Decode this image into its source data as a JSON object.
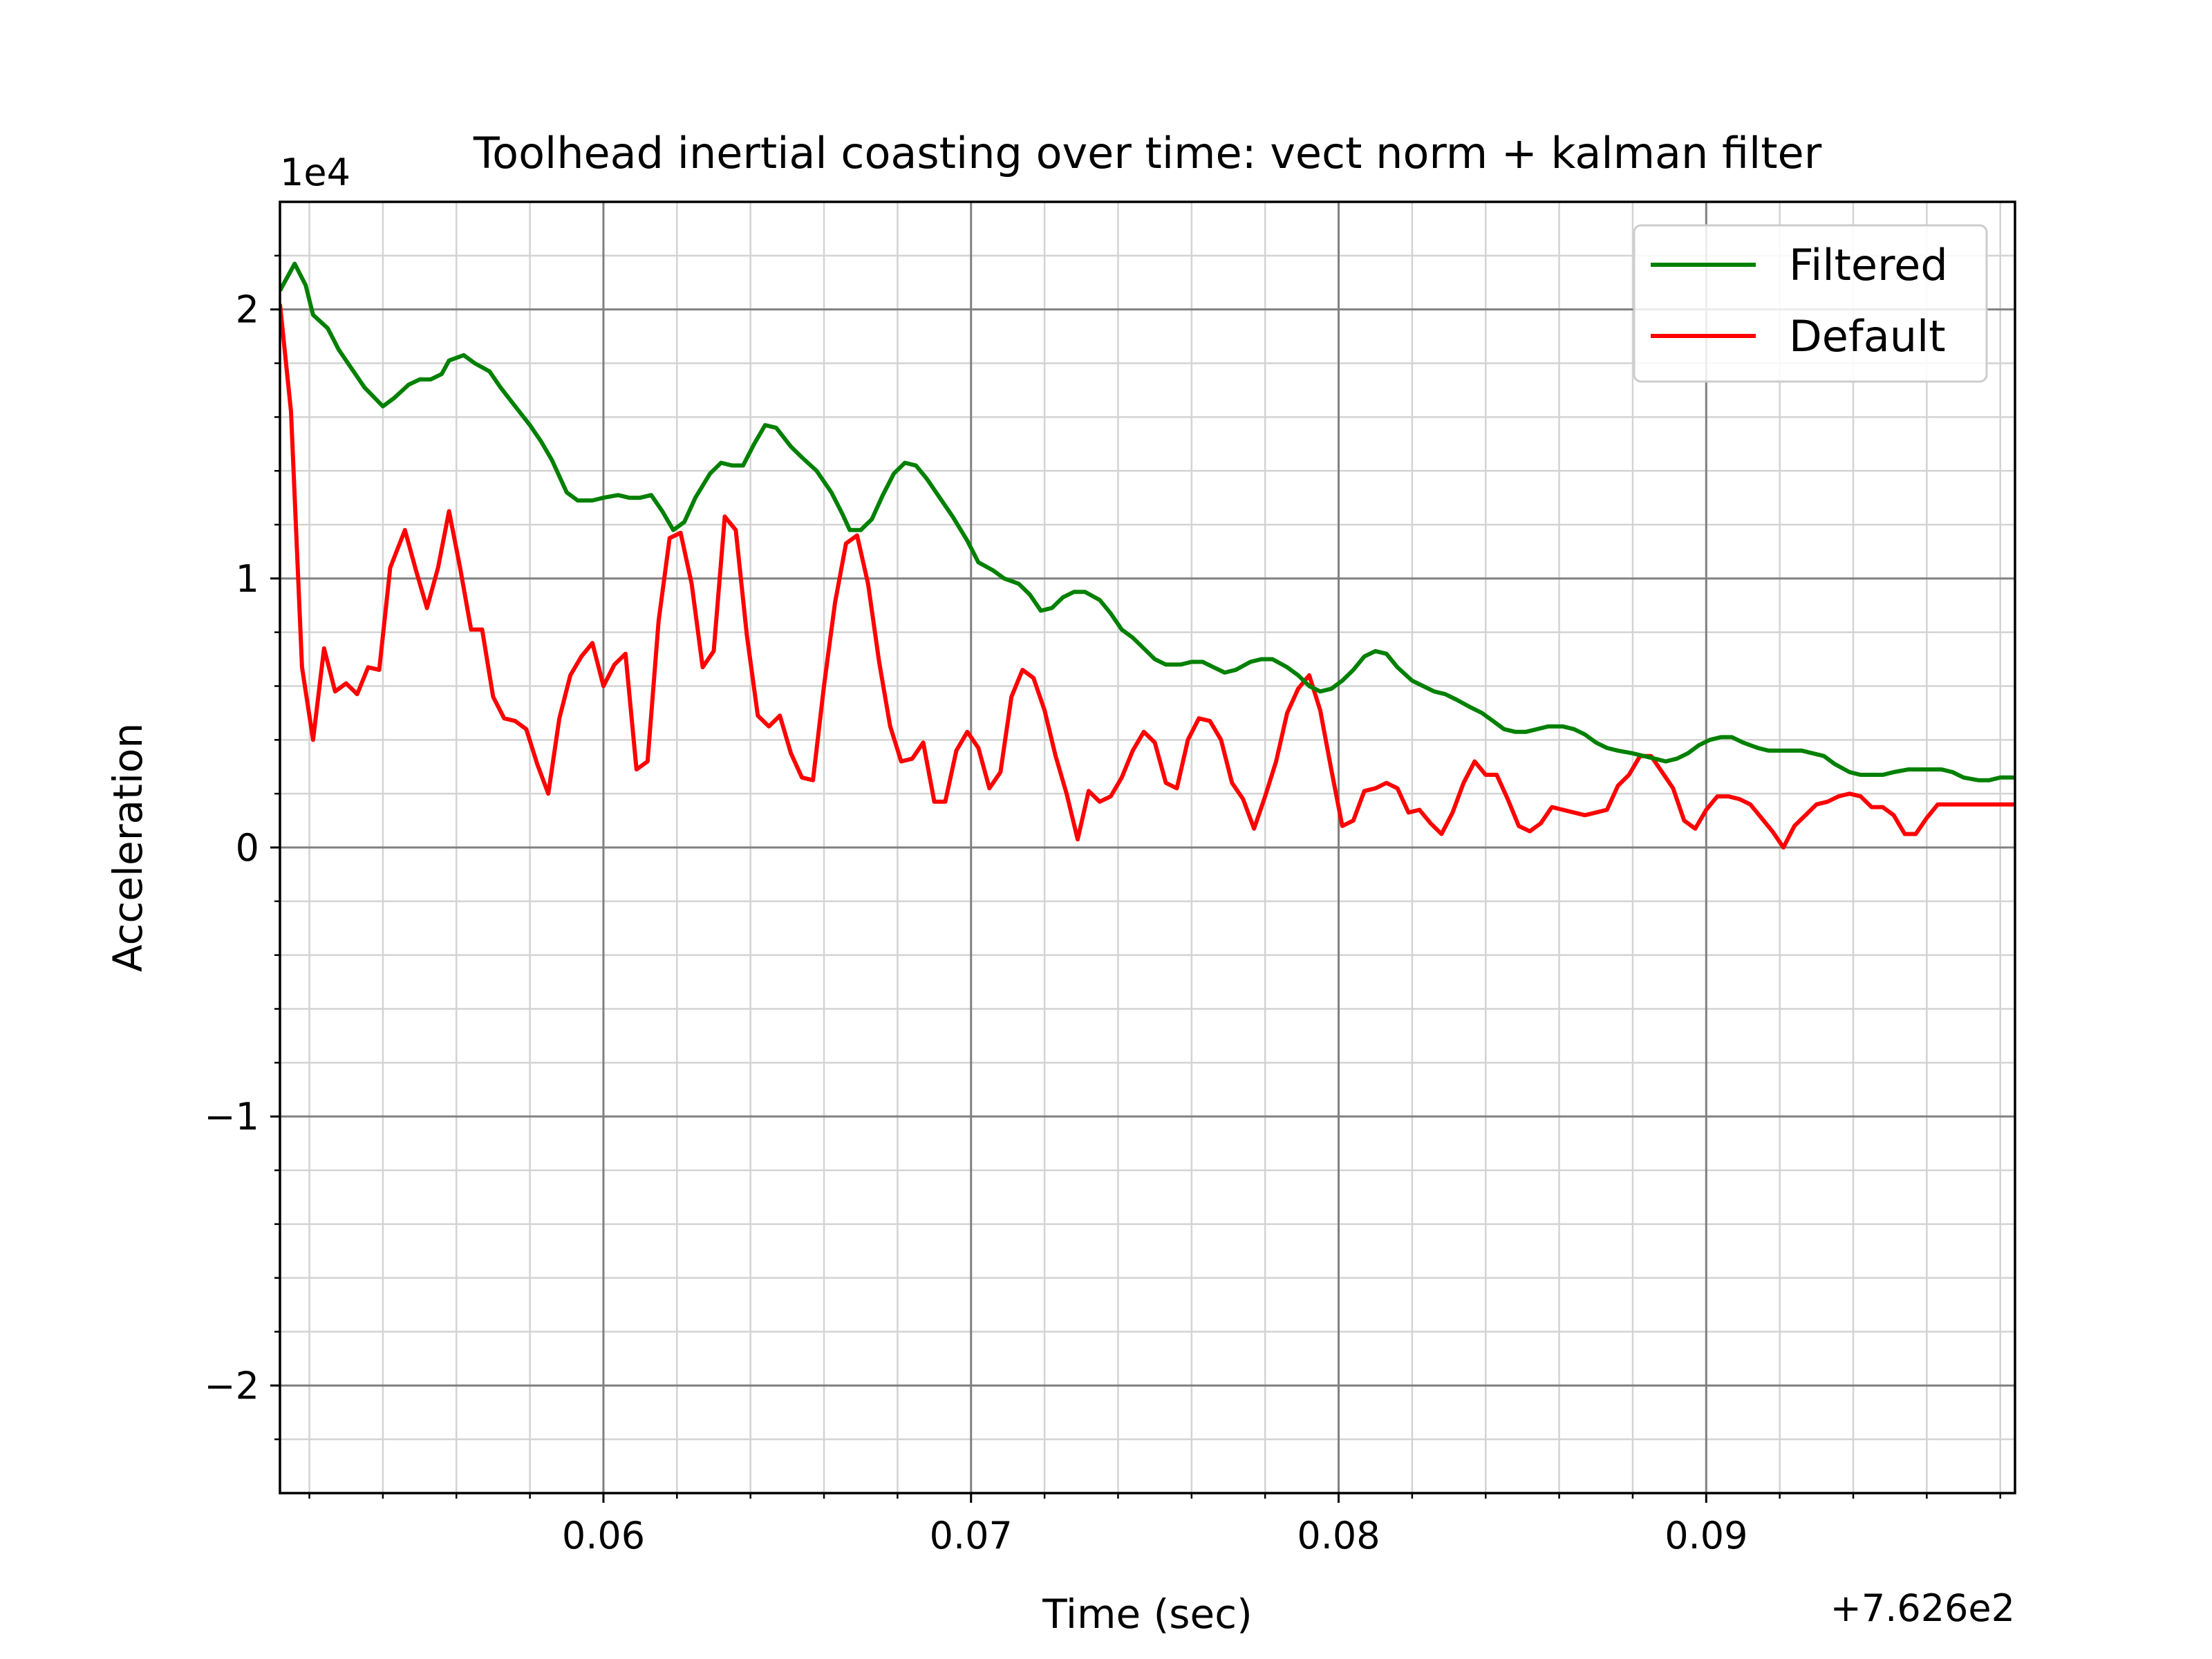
{
  "chart_data": {
    "type": "line",
    "title": "Toolhead inertial coasting over time: vect norm + kalman filter",
    "xlabel": "Time (sec)",
    "ylabel": "Acceleration",
    "x_offset_label": "+7.626e2",
    "y_scale_label": "1e4",
    "xlim": [
      0.0512,
      0.0984
    ],
    "ylim": [
      -2.4,
      2.4
    ],
    "x_ticks": [
      {
        "value": 0.06,
        "label": "0.06"
      },
      {
        "value": 0.07,
        "label": "0.07"
      },
      {
        "value": 0.08,
        "label": "0.08"
      },
      {
        "value": 0.09,
        "label": "0.09"
      }
    ],
    "y_ticks": [
      {
        "value": 2,
        "label": "2"
      },
      {
        "value": 1,
        "label": "1"
      },
      {
        "value": 0,
        "label": "0"
      },
      {
        "value": -1,
        "label": "−1"
      },
      {
        "value": -2,
        "label": "−2"
      }
    ],
    "grid": true,
    "legend_position": "top-right",
    "series": [
      {
        "name": "Filtered",
        "color": "#008000",
        "points": [
          [
            0.0512,
            2.07
          ],
          [
            0.0516,
            2.17
          ],
          [
            0.0519,
            2.09
          ],
          [
            0.0521,
            1.98
          ],
          [
            0.0525,
            1.93
          ],
          [
            0.0528,
            1.85
          ],
          [
            0.0532,
            1.77
          ],
          [
            0.0535,
            1.71
          ],
          [
            0.054,
            1.64
          ],
          [
            0.0543,
            1.67
          ],
          [
            0.0547,
            1.72
          ],
          [
            0.055,
            1.74
          ],
          [
            0.0553,
            1.74
          ],
          [
            0.0556,
            1.76
          ],
          [
            0.0558,
            1.81
          ],
          [
            0.0562,
            1.83
          ],
          [
            0.0565,
            1.8
          ],
          [
            0.0569,
            1.77
          ],
          [
            0.0572,
            1.71
          ],
          [
            0.0576,
            1.64
          ],
          [
            0.058,
            1.57
          ],
          [
            0.0583,
            1.51
          ],
          [
            0.0586,
            1.44
          ],
          [
            0.059,
            1.32
          ],
          [
            0.0593,
            1.29
          ],
          [
            0.0597,
            1.29
          ],
          [
            0.06,
            1.3
          ],
          [
            0.0604,
            1.31
          ],
          [
            0.0607,
            1.3
          ],
          [
            0.061,
            1.3
          ],
          [
            0.0613,
            1.31
          ],
          [
            0.0616,
            1.25
          ],
          [
            0.0619,
            1.18
          ],
          [
            0.0622,
            1.21
          ],
          [
            0.0625,
            1.3
          ],
          [
            0.0629,
            1.39
          ],
          [
            0.0632,
            1.43
          ],
          [
            0.0635,
            1.42
          ],
          [
            0.0638,
            1.42
          ],
          [
            0.0641,
            1.5
          ],
          [
            0.0644,
            1.57
          ],
          [
            0.0647,
            1.56
          ],
          [
            0.0651,
            1.49
          ],
          [
            0.0654,
            1.45
          ],
          [
            0.0658,
            1.4
          ],
          [
            0.0662,
            1.32
          ],
          [
            0.0665,
            1.24
          ],
          [
            0.0667,
            1.18
          ],
          [
            0.067,
            1.18
          ],
          [
            0.0673,
            1.22
          ],
          [
            0.0676,
            1.31
          ],
          [
            0.0679,
            1.39
          ],
          [
            0.0682,
            1.43
          ],
          [
            0.0685,
            1.42
          ],
          [
            0.0688,
            1.37
          ],
          [
            0.0692,
            1.29
          ],
          [
            0.0695,
            1.23
          ],
          [
            0.0699,
            1.14
          ],
          [
            0.0702,
            1.06
          ],
          [
            0.0706,
            1.03
          ],
          [
            0.0709,
            1.0
          ],
          [
            0.0713,
            0.98
          ],
          [
            0.0716,
            0.94
          ],
          [
            0.0719,
            0.88
          ],
          [
            0.0722,
            0.89
          ],
          [
            0.0725,
            0.93
          ],
          [
            0.0728,
            0.95
          ],
          [
            0.0731,
            0.95
          ],
          [
            0.0735,
            0.92
          ],
          [
            0.0738,
            0.87
          ],
          [
            0.0741,
            0.81
          ],
          [
            0.0744,
            0.78
          ],
          [
            0.0747,
            0.74
          ],
          [
            0.075,
            0.7
          ],
          [
            0.0753,
            0.68
          ],
          [
            0.0757,
            0.68
          ],
          [
            0.076,
            0.69
          ],
          [
            0.0763,
            0.69
          ],
          [
            0.0766,
            0.67
          ],
          [
            0.0769,
            0.65
          ],
          [
            0.0772,
            0.66
          ],
          [
            0.0776,
            0.69
          ],
          [
            0.0779,
            0.7
          ],
          [
            0.0782,
            0.7
          ],
          [
            0.0786,
            0.67
          ],
          [
            0.0789,
            0.64
          ],
          [
            0.0792,
            0.6
          ],
          [
            0.0795,
            0.58
          ],
          [
            0.0798,
            0.59
          ],
          [
            0.0801,
            0.62
          ],
          [
            0.0804,
            0.66
          ],
          [
            0.0807,
            0.71
          ],
          [
            0.081,
            0.73
          ],
          [
            0.0813,
            0.72
          ],
          [
            0.0816,
            0.67
          ],
          [
            0.082,
            0.62
          ],
          [
            0.0823,
            0.6
          ],
          [
            0.0826,
            0.58
          ],
          [
            0.0829,
            0.57
          ],
          [
            0.0832,
            0.55
          ],
          [
            0.0836,
            0.52
          ],
          [
            0.0839,
            0.5
          ],
          [
            0.0842,
            0.47
          ],
          [
            0.0845,
            0.44
          ],
          [
            0.0848,
            0.43
          ],
          [
            0.0851,
            0.43
          ],
          [
            0.0854,
            0.44
          ],
          [
            0.0857,
            0.45
          ],
          [
            0.0861,
            0.45
          ],
          [
            0.0864,
            0.44
          ],
          [
            0.0867,
            0.42
          ],
          [
            0.087,
            0.39
          ],
          [
            0.0873,
            0.37
          ],
          [
            0.0876,
            0.36
          ],
          [
            0.088,
            0.35
          ],
          [
            0.0883,
            0.34
          ],
          [
            0.0886,
            0.33
          ],
          [
            0.0889,
            0.32
          ],
          [
            0.0892,
            0.33
          ],
          [
            0.0895,
            0.35
          ],
          [
            0.0898,
            0.38
          ],
          [
            0.0901,
            0.4
          ],
          [
            0.0904,
            0.41
          ],
          [
            0.0907,
            0.41
          ],
          [
            0.091,
            0.39
          ],
          [
            0.0914,
            0.37
          ],
          [
            0.0917,
            0.36
          ],
          [
            0.092,
            0.36
          ],
          [
            0.0923,
            0.36
          ],
          [
            0.0926,
            0.36
          ],
          [
            0.0929,
            0.35
          ],
          [
            0.0932,
            0.34
          ],
          [
            0.0935,
            0.31
          ],
          [
            0.0939,
            0.28
          ],
          [
            0.0942,
            0.27
          ],
          [
            0.0945,
            0.27
          ],
          [
            0.0948,
            0.27
          ],
          [
            0.0951,
            0.28
          ],
          [
            0.0955,
            0.29
          ],
          [
            0.0958,
            0.29
          ],
          [
            0.0961,
            0.29
          ],
          [
            0.0964,
            0.29
          ],
          [
            0.0967,
            0.28
          ],
          [
            0.097,
            0.26
          ],
          [
            0.0974,
            0.25
          ],
          [
            0.0977,
            0.25
          ],
          [
            0.098,
            0.26
          ],
          [
            0.0984,
            0.26
          ]
        ]
      },
      {
        "name": "Default",
        "color": "#ff0000",
        "points": [
          [
            0.0512,
            2.02
          ],
          [
            0.0515,
            1.62
          ],
          [
            0.0518,
            0.67
          ],
          [
            0.0521,
            0.4
          ],
          [
            0.0524,
            0.74
          ],
          [
            0.0527,
            0.58
          ],
          [
            0.053,
            0.61
          ],
          [
            0.0533,
            0.57
          ],
          [
            0.0536,
            0.67
          ],
          [
            0.0539,
            0.66
          ],
          [
            0.0542,
            1.04
          ],
          [
            0.0546,
            1.18
          ],
          [
            0.0549,
            1.03
          ],
          [
            0.0552,
            0.89
          ],
          [
            0.0555,
            1.04
          ],
          [
            0.0558,
            1.25
          ],
          [
            0.0561,
            1.04
          ],
          [
            0.0564,
            0.81
          ],
          [
            0.0567,
            0.81
          ],
          [
            0.057,
            0.56
          ],
          [
            0.0573,
            0.48
          ],
          [
            0.0576,
            0.47
          ],
          [
            0.0579,
            0.44
          ],
          [
            0.0582,
            0.31
          ],
          [
            0.0585,
            0.2
          ],
          [
            0.0588,
            0.48
          ],
          [
            0.0591,
            0.64
          ],
          [
            0.0594,
            0.71
          ],
          [
            0.0597,
            0.76
          ],
          [
            0.06,
            0.6
          ],
          [
            0.0603,
            0.68
          ],
          [
            0.0606,
            0.72
          ],
          [
            0.0609,
            0.29
          ],
          [
            0.0612,
            0.32
          ],
          [
            0.0615,
            0.84
          ],
          [
            0.0618,
            1.15
          ],
          [
            0.0621,
            1.17
          ],
          [
            0.0624,
            0.98
          ],
          [
            0.0627,
            0.67
          ],
          [
            0.063,
            0.73
          ],
          [
            0.0633,
            1.23
          ],
          [
            0.0636,
            1.18
          ],
          [
            0.0639,
            0.79
          ],
          [
            0.0642,
            0.49
          ],
          [
            0.0645,
            0.45
          ],
          [
            0.0648,
            0.49
          ],
          [
            0.0651,
            0.35
          ],
          [
            0.0654,
            0.26
          ],
          [
            0.0657,
            0.25
          ],
          [
            0.066,
            0.6
          ],
          [
            0.0663,
            0.91
          ],
          [
            0.0666,
            1.13
          ],
          [
            0.0669,
            1.16
          ],
          [
            0.0672,
            0.98
          ],
          [
            0.0675,
            0.69
          ],
          [
            0.0678,
            0.45
          ],
          [
            0.0681,
            0.32
          ],
          [
            0.0684,
            0.33
          ],
          [
            0.0687,
            0.39
          ],
          [
            0.069,
            0.17
          ],
          [
            0.0693,
            0.17
          ],
          [
            0.0696,
            0.36
          ],
          [
            0.0699,
            0.43
          ],
          [
            0.0702,
            0.37
          ],
          [
            0.0705,
            0.22
          ],
          [
            0.0708,
            0.28
          ],
          [
            0.0711,
            0.56
          ],
          [
            0.0714,
            0.66
          ],
          [
            0.0717,
            0.63
          ],
          [
            0.072,
            0.51
          ],
          [
            0.0723,
            0.34
          ],
          [
            0.0726,
            0.2
          ],
          [
            0.0729,
            0.03
          ],
          [
            0.0732,
            0.21
          ],
          [
            0.0735,
            0.17
          ],
          [
            0.0738,
            0.19
          ],
          [
            0.0741,
            0.26
          ],
          [
            0.0744,
            0.36
          ],
          [
            0.0747,
            0.43
          ],
          [
            0.075,
            0.39
          ],
          [
            0.0753,
            0.24
          ],
          [
            0.0756,
            0.22
          ],
          [
            0.0759,
            0.4
          ],
          [
            0.0762,
            0.48
          ],
          [
            0.0765,
            0.47
          ],
          [
            0.0768,
            0.4
          ],
          [
            0.0771,
            0.24
          ],
          [
            0.0774,
            0.18
          ],
          [
            0.0777,
            0.07
          ],
          [
            0.078,
            0.19
          ],
          [
            0.0783,
            0.32
          ],
          [
            0.0786,
            0.5
          ],
          [
            0.0789,
            0.59
          ],
          [
            0.0792,
            0.64
          ],
          [
            0.0795,
            0.51
          ],
          [
            0.0798,
            0.29
          ],
          [
            0.0801,
            0.08
          ],
          [
            0.0804,
            0.1
          ],
          [
            0.0807,
            0.21
          ],
          [
            0.081,
            0.22
          ],
          [
            0.0813,
            0.24
          ],
          [
            0.0816,
            0.22
          ],
          [
            0.0819,
            0.13
          ],
          [
            0.0822,
            0.14
          ],
          [
            0.0825,
            0.09
          ],
          [
            0.0828,
            0.05
          ],
          [
            0.0831,
            0.13
          ],
          [
            0.0834,
            0.24
          ],
          [
            0.0837,
            0.32
          ],
          [
            0.084,
            0.27
          ],
          [
            0.0843,
            0.27
          ],
          [
            0.0846,
            0.18
          ],
          [
            0.0849,
            0.08
          ],
          [
            0.0852,
            0.06
          ],
          [
            0.0855,
            0.09
          ],
          [
            0.0858,
            0.15
          ],
          [
            0.0861,
            0.14
          ],
          [
            0.0864,
            0.13
          ],
          [
            0.0867,
            0.12
          ],
          [
            0.087,
            0.13
          ],
          [
            0.0873,
            0.14
          ],
          [
            0.0876,
            0.23
          ],
          [
            0.0879,
            0.27
          ],
          [
            0.0882,
            0.34
          ],
          [
            0.0885,
            0.34
          ],
          [
            0.0888,
            0.28
          ],
          [
            0.0891,
            0.22
          ],
          [
            0.0894,
            0.1
          ],
          [
            0.0897,
            0.07
          ],
          [
            0.09,
            0.14
          ],
          [
            0.0903,
            0.19
          ],
          [
            0.0906,
            0.19
          ],
          [
            0.0909,
            0.18
          ],
          [
            0.0912,
            0.16
          ],
          [
            0.0915,
            0.11
          ],
          [
            0.0918,
            0.06
          ],
          [
            0.0921,
            0.0
          ],
          [
            0.0924,
            0.08
          ],
          [
            0.0927,
            0.12
          ],
          [
            0.093,
            0.16
          ],
          [
            0.0933,
            0.17
          ],
          [
            0.0936,
            0.19
          ],
          [
            0.0939,
            0.2
          ],
          [
            0.0942,
            0.19
          ],
          [
            0.0945,
            0.15
          ],
          [
            0.0948,
            0.15
          ],
          [
            0.0951,
            0.12
          ],
          [
            0.0954,
            0.05
          ],
          [
            0.0957,
            0.05
          ],
          [
            0.096,
            0.11
          ],
          [
            0.0963,
            0.16
          ],
          [
            0.0966,
            0.16
          ],
          [
            0.0984,
            0.16
          ]
        ]
      }
    ]
  }
}
